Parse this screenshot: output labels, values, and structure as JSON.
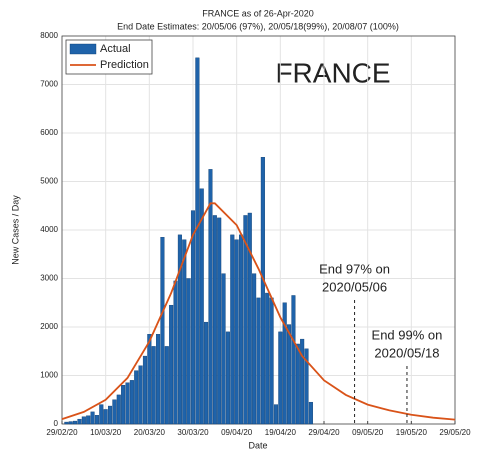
{
  "chart_data": {
    "type": "bar",
    "title": "FRANCE as of 26-Apr-2020",
    "subtitle": "End Date Estimates: 20/05/06 (97%), 20/05/18(99%), 20/08/07 (100%)",
    "label": "FRANCE",
    "x_label": "Date",
    "y_label": "New Cases / Day",
    "xlim": [
      "2020-02-29",
      "2020-05-29"
    ],
    "xticks": [
      {
        "value": "2020-02-29",
        "label": "29/02/20"
      },
      {
        "value": "2020-03-10",
        "label": "10/03/20"
      },
      {
        "value": "2020-03-20",
        "label": "20/03/20"
      },
      {
        "value": "2020-03-30",
        "label": "30/03/20"
      },
      {
        "value": "2020-04-09",
        "label": "09/04/20"
      },
      {
        "value": "2020-04-19",
        "label": "19/04/20"
      },
      {
        "value": "2020-04-29",
        "label": "29/04/20"
      },
      {
        "value": "2020-05-09",
        "label": "09/05/20"
      },
      {
        "value": "2020-05-19",
        "label": "19/05/20"
      },
      {
        "value": "2020-05-29",
        "label": "29/05/20"
      }
    ],
    "ylim": [
      0,
      8000
    ],
    "yticks": [
      0,
      1000,
      2000,
      3000,
      4000,
      5000,
      6000,
      7000,
      8000
    ],
    "grid": true,
    "legend": "north-west",
    "series": [
      {
        "name": "Actual",
        "type": "bar",
        "color": "#1f63aa",
        "x": [
          "2020-03-01",
          "2020-03-02",
          "2020-03-03",
          "2020-03-04",
          "2020-03-05",
          "2020-03-06",
          "2020-03-07",
          "2020-03-08",
          "2020-03-09",
          "2020-03-10",
          "2020-03-11",
          "2020-03-12",
          "2020-03-13",
          "2020-03-14",
          "2020-03-15",
          "2020-03-16",
          "2020-03-17",
          "2020-03-18",
          "2020-03-19",
          "2020-03-20",
          "2020-03-21",
          "2020-03-22",
          "2020-03-23",
          "2020-03-24",
          "2020-03-25",
          "2020-03-26",
          "2020-03-27",
          "2020-03-28",
          "2020-03-29",
          "2020-03-30",
          "2020-03-31",
          "2020-04-01",
          "2020-04-02",
          "2020-04-03",
          "2020-04-04",
          "2020-04-05",
          "2020-04-06",
          "2020-04-07",
          "2020-04-08",
          "2020-04-09",
          "2020-04-10",
          "2020-04-11",
          "2020-04-12",
          "2020-04-13",
          "2020-04-14",
          "2020-04-15",
          "2020-04-16",
          "2020-04-17",
          "2020-04-18",
          "2020-04-19",
          "2020-04-20",
          "2020-04-21",
          "2020-04-22",
          "2020-04-23",
          "2020-04-24",
          "2020-04-25",
          "2020-04-26"
        ],
        "values": [
          40,
          50,
          60,
          100,
          150,
          170,
          250,
          180,
          400,
          300,
          370,
          500,
          600,
          800,
          850,
          900,
          1100,
          1200,
          1400,
          1850,
          1600,
          1850,
          3850,
          1600,
          2450,
          2950,
          3900,
          3800,
          3000,
          4400,
          7550,
          4850,
          2100,
          5250,
          4300,
          4250,
          3100,
          1900,
          3900,
          3800,
          3900,
          4300,
          4350,
          3100,
          2600,
          5500,
          2700,
          2600,
          400,
          1900,
          2500,
          2050,
          2650,
          1650,
          1750,
          1550,
          450
        ]
      },
      {
        "name": "Prediction",
        "type": "line",
        "color": "#d95319",
        "x": [
          "2020-02-29",
          "2020-03-05",
          "2020-03-10",
          "2020-03-15",
          "2020-03-20",
          "2020-03-25",
          "2020-03-30",
          "2020-04-03",
          "2020-04-04",
          "2020-04-09",
          "2020-04-14",
          "2020-04-19",
          "2020-04-24",
          "2020-04-29",
          "2020-05-04",
          "2020-05-09",
          "2020-05-14",
          "2020-05-19",
          "2020-05-24",
          "2020-05-29"
        ],
        "values": [
          100,
          250,
          500,
          950,
          1700,
          2700,
          3900,
          4550,
          4550,
          4100,
          3200,
          2200,
          1400,
          900,
          600,
          400,
          280,
          190,
          130,
          90
        ]
      }
    ],
    "annotations": [
      {
        "text": [
          "End 97% on",
          "2020/05/06"
        ],
        "x": "2020-05-06"
      },
      {
        "text": [
          "End 99% on",
          "2020/05/18"
        ],
        "x": "2020-05-18"
      }
    ]
  }
}
